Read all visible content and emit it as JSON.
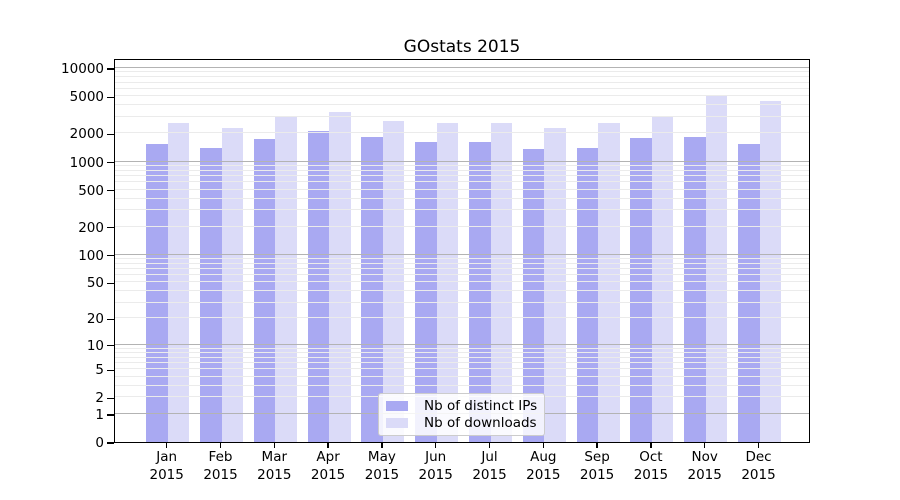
{
  "chart_data": {
    "type": "bar",
    "title": "GOstats 2015",
    "categories": [
      "Jan",
      "Feb",
      "Mar",
      "Apr",
      "May",
      "Jun",
      "Jul",
      "Aug",
      "Sep",
      "Oct",
      "Nov",
      "Dec"
    ],
    "x_tick_second_line": "2015",
    "series": [
      {
        "name": "Nb of distinct IPs",
        "color": "#a9a9f2",
        "values": [
          1550,
          1400,
          1750,
          2100,
          1850,
          1600,
          1600,
          1350,
          1400,
          1800,
          1850,
          1550
        ]
      },
      {
        "name": "Nb of downloads",
        "color": "#dbdbf8",
        "values": [
          2600,
          2300,
          3100,
          3400,
          2700,
          2600,
          2600,
          2300,
          2600,
          3100,
          5000,
          4400
        ]
      }
    ],
    "y_ticks": [
      10000,
      5000,
      2000,
      1000,
      500,
      200,
      100,
      50,
      20,
      10,
      5,
      2,
      1,
      0
    ],
    "scale": "log1p",
    "ylim": [
      0,
      12800
    ],
    "grid": true,
    "grid_major_color": "#b3b3b3",
    "grid_minor_color": "#ebebeb",
    "axis_color": "#000000",
    "background_color": "#ffffff",
    "legend_position": "bottom-center"
  }
}
